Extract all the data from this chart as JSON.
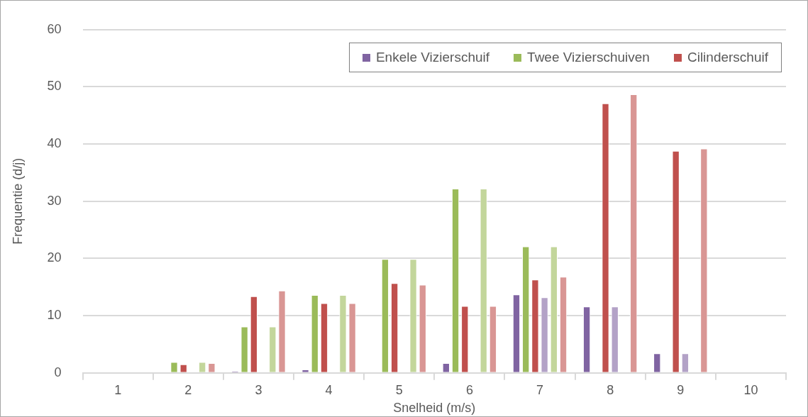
{
  "chart_data": {
    "type": "bar",
    "xlabel": "Snelheid (m/s)",
    "ylabel": "Frequentie (d/j)",
    "categories": [
      "1",
      "2",
      "3",
      "4",
      "5",
      "6",
      "7",
      "8",
      "9",
      "10"
    ],
    "series": [
      {
        "name": "Enkele Vizierschuif",
        "color": "#8064a2",
        "values": [
          0,
          0,
          0.3,
          0.6,
          0,
          1.7,
          13.7,
          11.6,
          3.4,
          0
        ]
      },
      {
        "name": "Twee Vizierschuiven",
        "color": "#9bbb59",
        "values": [
          0,
          1.9,
          8.1,
          13.6,
          19.9,
          32.2,
          22.1,
          0,
          0,
          0
        ]
      },
      {
        "name": "Cilinderschuif",
        "color": "#c0504d",
        "values": [
          0,
          1.5,
          13.4,
          12.2,
          15.7,
          11.7,
          16.3,
          47.1,
          38.8,
          0
        ]
      },
      {
        "color": "#b3a2c7",
        "values": [
          0,
          0,
          0,
          0,
          0,
          0,
          13.2,
          11.6,
          3.4,
          0
        ]
      },
      {
        "color": "#c3d69b",
        "values": [
          0,
          1.9,
          8.1,
          13.6,
          19.9,
          32.2,
          22.1,
          0,
          0,
          0
        ]
      },
      {
        "color": "#d99694",
        "values": [
          0,
          1.7,
          14.4,
          12.2,
          15.4,
          11.7,
          16.8,
          48.7,
          39.2,
          0
        ]
      }
    ],
    "ylim": [
      0,
      60
    ],
    "yticks": [
      0,
      10,
      20,
      30,
      40,
      50,
      60
    ],
    "grid": "y",
    "legend": "top right"
  }
}
